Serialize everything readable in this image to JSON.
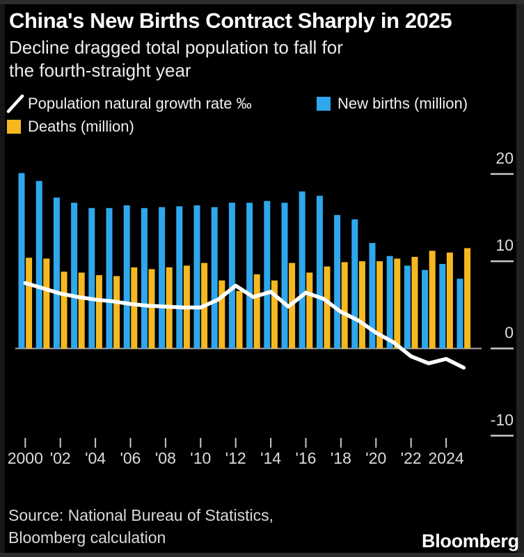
{
  "header": {
    "title": "China's New Births Contract Sharply in 2025",
    "subtitle_line1": "Decline dragged total population to fall for",
    "subtitle_line2": "the fourth-straight year"
  },
  "legend": {
    "rate": {
      "label": "Population natural growth rate ‰",
      "marker": "line",
      "color": "#ffffff"
    },
    "births": {
      "label": "New births (million)",
      "marker": "square",
      "color": "#2ea7ec"
    },
    "deaths": {
      "label": "Deaths (million)",
      "marker": "square",
      "color": "#f6b821"
    }
  },
  "footer": {
    "source_line1": "Source: National Bureau of Statistics,",
    "source_line2": "Bloomberg calculation",
    "brand": "Bloomberg"
  },
  "chart_data": {
    "type": "bar",
    "title": "China's New Births Contract Sharply in 2025",
    "x": [
      2000,
      2001,
      2002,
      2003,
      2004,
      2005,
      2006,
      2007,
      2008,
      2009,
      2010,
      2011,
      2012,
      2013,
      2014,
      2015,
      2016,
      2017,
      2018,
      2019,
      2020,
      2021,
      2022,
      2023,
      2024,
      2025
    ],
    "series": [
      {
        "name": "New births (million)",
        "type": "bar",
        "color": "#2ea7ec",
        "values": [
          20.1,
          19.2,
          17.3,
          16.7,
          16.1,
          16.1,
          16.4,
          16.1,
          16.2,
          16.3,
          16.4,
          16.2,
          16.7,
          16.7,
          16.9,
          16.7,
          18.0,
          17.5,
          15.3,
          14.8,
          12.1,
          10.6,
          9.5,
          9.0,
          9.7,
          8.0
        ]
      },
      {
        "name": "Deaths (million)",
        "type": "bar",
        "color": "#f6b821",
        "values": [
          10.4,
          10.3,
          8.8,
          8.7,
          8.4,
          8.3,
          9.3,
          9.1,
          9.3,
          9.5,
          9.8,
          7.8,
          6.6,
          8.5,
          7.8,
          9.8,
          8.7,
          9.4,
          9.9,
          10.0,
          10.0,
          10.3,
          10.5,
          11.2,
          11.0,
          11.5
        ]
      },
      {
        "name": "Population natural growth rate ‰",
        "type": "line",
        "color": "#ffffff",
        "values": [
          7.5,
          6.9,
          6.3,
          5.9,
          5.6,
          5.4,
          5.1,
          4.9,
          4.8,
          4.7,
          4.7,
          5.6,
          7.2,
          5.9,
          6.5,
          4.8,
          6.4,
          5.7,
          4.2,
          3.2,
          1.8,
          0.7,
          -0.9,
          -1.7,
          -1.2,
          -2.2
        ]
      }
    ],
    "y_ticks": [
      20,
      10,
      0,
      -10
    ],
    "y_tick_labels": [
      "20",
      "10",
      "0",
      "-10"
    ],
    "x_tick_labels": [
      "2000",
      "'02",
      "'04",
      "'06",
      "'08",
      "'10",
      "'12",
      "'14",
      "'16",
      "'18",
      "'20",
      "'22",
      "2024"
    ],
    "x_tick_years": [
      2000,
      2002,
      2004,
      2006,
      2008,
      2010,
      2012,
      2014,
      2016,
      2018,
      2020,
      2022,
      2024
    ],
    "ylim": [
      -13,
      21
    ],
    "grid": "zero-line-only",
    "legend_position": "top",
    "axis_color": "#c9c9c9",
    "zero_line_color": "#a9a9a9"
  }
}
